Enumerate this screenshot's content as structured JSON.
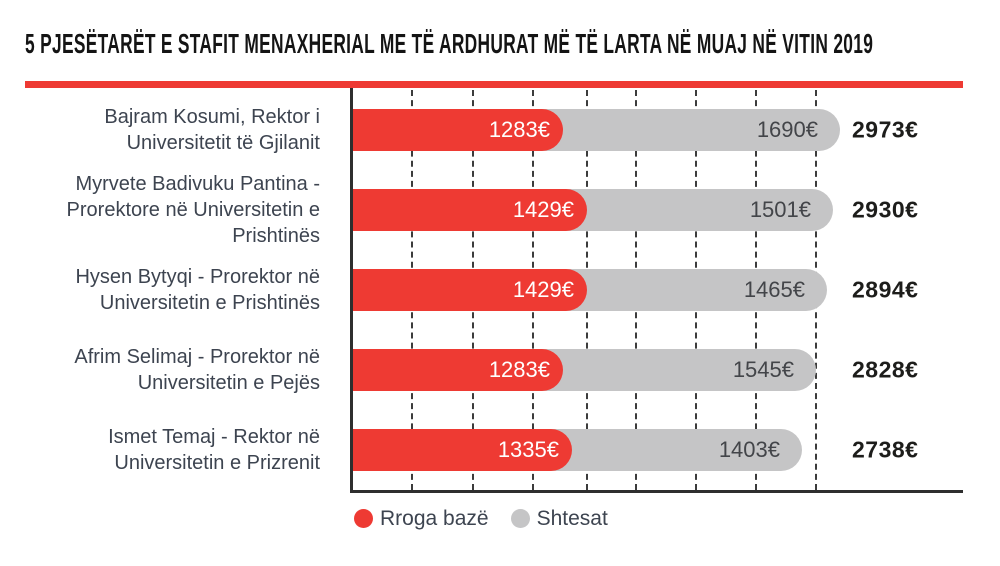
{
  "title": "5 PJESËTARËT E STAFIT MENAXHERIAL ME TË ARDHURAT MË TË LARTA NË MUAJ NË VITIN 2019",
  "colors": {
    "accent_red": "#ee3a33",
    "bar_gray": "#c5c5c6",
    "axis": "#2e2e2e",
    "name_text": "#3d4450",
    "total_text": "#1d1d1b"
  },
  "legend": {
    "items": [
      {
        "label": "Rroga bazë",
        "color": "#ee3a33"
      },
      {
        "label": "Shtesat",
        "color": "#c5c5c6"
      }
    ]
  },
  "chart_data": {
    "type": "bar",
    "orientation": "horizontal",
    "stacked": true,
    "unit": "€",
    "title": "5 PJESËTARËT E STAFIT MENAXHERIAL ME TË ARDHURAT MË TË LARTA NË MUAJ NË VITIN 2019",
    "grid": "vertical-dashed",
    "legend_position": "bottom",
    "xlim": [
      0,
      3000
    ],
    "categories": [
      "Bajram Kosumi, Rektor i Universitetit të Gjilanit",
      "Myrvete Badivuku Pantina - Prorektore në Universitetin e Prishtinës",
      "Hysen Bytyqi - Prorektor në Universitetin e Prishtinës",
      "Afrim Selimaj - Prorektor në Universitetin e Pejës",
      "Ismet Temaj - Rektor në Universitetin e Prizrenit"
    ],
    "series": [
      {
        "name": "Rroga bazë",
        "color": "#ee3a33",
        "values": [
          1283,
          1429,
          1429,
          1283,
          1335
        ]
      },
      {
        "name": "Shtesat",
        "color": "#c5c5c6",
        "values": [
          1690,
          1501,
          1465,
          1545,
          1403
        ]
      }
    ],
    "totals": [
      2973,
      2930,
      2894,
      2828,
      2738
    ],
    "rows": [
      {
        "label": "Bajram Kosumi, Rektor i Universitetit të Gjilanit",
        "rroga": 1283,
        "rroga_label": "1283€",
        "shtesat": 1690,
        "shtesat_label": "1690€",
        "total": 2973,
        "total_label": "2973€"
      },
      {
        "label": "Myrvete Badivuku Pantina - Prorektore në Universitetin e Prishtinës",
        "rroga": 1429,
        "rroga_label": "1429€",
        "shtesat": 1501,
        "shtesat_label": "1501€",
        "total": 2930,
        "total_label": "2930€"
      },
      {
        "label": "Hysen Bytyqi - Prorektor në Universitetin e Prishtinës",
        "rroga": 1429,
        "rroga_label": "1429€",
        "shtesat": 1465,
        "shtesat_label": "1465€",
        "total": 2894,
        "total_label": "2894€"
      },
      {
        "label": "Afrim Selimaj - Prorektor në Universitetin e Pejës",
        "rroga": 1283,
        "rroga_label": "1283€",
        "shtesat": 1545,
        "shtesat_label": "1545€",
        "total": 2828,
        "total_label": "2828€"
      },
      {
        "label": "Ismet Temaj - Rektor në Universitetin e Prizrenit",
        "rroga": 1335,
        "rroga_label": "1335€",
        "shtesat": 1403,
        "shtesat_label": "1403€",
        "total": 2738,
        "total_label": "2738€"
      }
    ]
  }
}
